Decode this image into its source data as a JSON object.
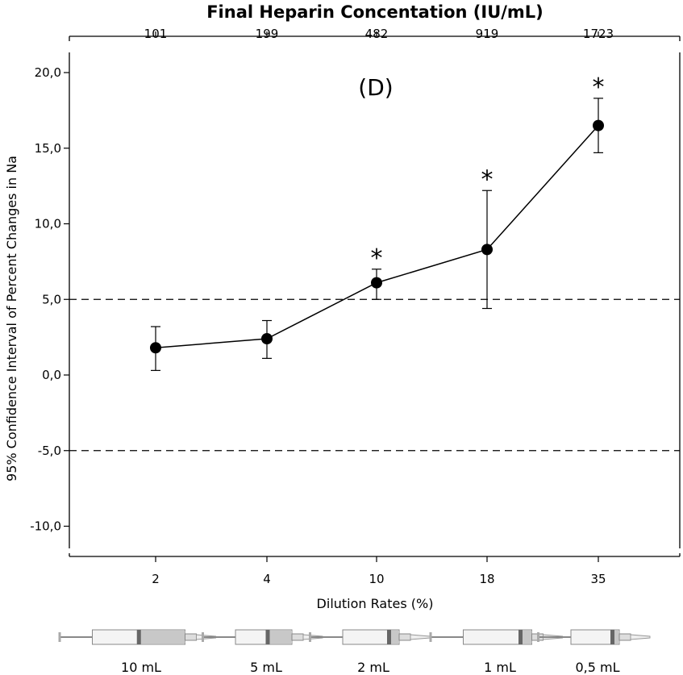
{
  "chart_data": {
    "type": "line",
    "panel_label": "(D)",
    "title": "Final Heparin Concentation (IU/mL)",
    "xlabel": "Dilution Rates (%)",
    "ylabel": "95% Confidence Interval of Percent Changes in Na",
    "categories": [
      "2",
      "4",
      "10",
      "18",
      "35"
    ],
    "top_categories": [
      "101",
      "199",
      "482",
      "919",
      "1723"
    ],
    "yticks": [
      "20,0",
      "15,0",
      "10,0",
      "5,0",
      "0,0",
      "-5,0",
      "-10,0"
    ],
    "ytick_values": [
      20,
      15,
      10,
      5,
      0,
      -5,
      -10
    ],
    "ylim": [
      -12.0,
      22.4
    ],
    "series": [
      {
        "values": [
          1.8,
          2.4,
          6.1,
          8.3,
          16.5
        ],
        "ci_low": [
          0.3,
          1.1,
          5.0,
          4.4,
          14.7
        ],
        "ci_high": [
          3.2,
          3.6,
          7.0,
          12.2,
          18.3
        ],
        "significant": [
          false,
          false,
          true,
          true,
          true
        ]
      }
    ],
    "significance_marker": "*",
    "reference_lines": [
      5,
      -5
    ],
    "grid": false,
    "syringe_labels": [
      "10 mL",
      "5 mL",
      "2 mL",
      "1 mL",
      "0,5 mL"
    ],
    "syringe_fill": [
      0.45,
      0.35,
      0.1,
      0.1,
      0.05
    ]
  }
}
